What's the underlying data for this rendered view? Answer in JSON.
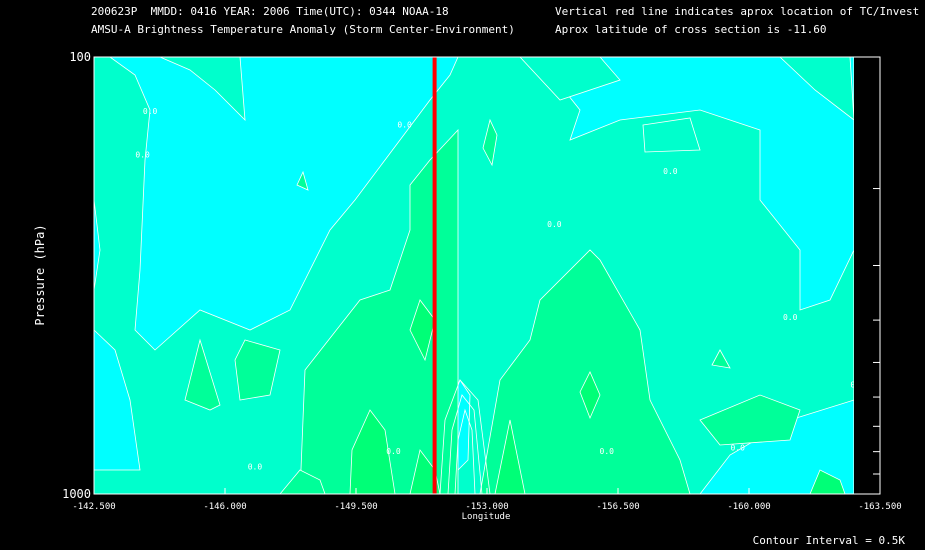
{
  "header": {
    "line1_left": "200623P  MMDD: 0416 YEAR: 2006 Time(UTC): 0344 NOAA-18",
    "line2_left": "AMSU-A Brightness Temperature Anomaly (Storm Center-Environment)",
    "line1_right": "Vertical red line indicates aprox location of TC/Invest",
    "line2_right": "Aprox latitude of cross section is -11.60"
  },
  "footer": {
    "contour_interval": "Contour Interval = 0.5K"
  },
  "colors": {
    "background": "#000000",
    "cyan": "#00ffff",
    "level1": "#00ffcc",
    "level2": "#00ff99",
    "level3": "#00ff77",
    "tc_line": "#ff0000",
    "contour": "#ffffff"
  },
  "chart_data": {
    "type": "heatmap",
    "xlabel": "Longitude",
    "ylabel": "Pressure (hPa)",
    "xlim": [
      -142.5,
      -163.5
    ],
    "ylim": [
      1000,
      100
    ],
    "y_scale": "log",
    "x_ticks": [
      {
        "value": -142.5,
        "label": "-142.500"
      },
      {
        "value": -146.0,
        "label": "-146.000"
      },
      {
        "value": -149.5,
        "label": "-149.500"
      },
      {
        "value": -153.0,
        "label": "-153.000"
      },
      {
        "value": -156.5,
        "label": "-156.500"
      },
      {
        "value": -160.0,
        "label": "-160.000"
      },
      {
        "value": -163.5,
        "label": "-163.500"
      }
    ],
    "y_ticks": [
      {
        "value": 100,
        "label": "100"
      },
      {
        "value": 1000,
        "label": "1000"
      }
    ],
    "y_minor_ticks": [
      200,
      300,
      400,
      500,
      600,
      700,
      800,
      900
    ],
    "tc_longitude": -151.6,
    "contour_levels": [
      0.0,
      0.5,
      1.0,
      1.5
    ],
    "contour_labels": [
      {
        "x": -144.0,
        "p": 135,
        "text": "0.0"
      },
      {
        "x": -143.8,
        "p": 170,
        "text": "0.0"
      },
      {
        "x": -150.8,
        "p": 145,
        "text": "0.0"
      },
      {
        "x": -154.8,
        "p": 245,
        "text": "0.0"
      },
      {
        "x": -157.9,
        "p": 185,
        "text": "0.0"
      },
      {
        "x": -161.1,
        "p": 400,
        "text": "0.0"
      },
      {
        "x": -162.9,
        "p": 570,
        "text": "0.0"
      },
      {
        "x": -159.7,
        "p": 795,
        "text": "0.0"
      },
      {
        "x": -150.5,
        "p": 810,
        "text": "0.0"
      },
      {
        "x": -156.2,
        "p": 810,
        "text": "0.0"
      },
      {
        "x": -146.8,
        "p": 880,
        "text": "0.0"
      }
    ]
  }
}
